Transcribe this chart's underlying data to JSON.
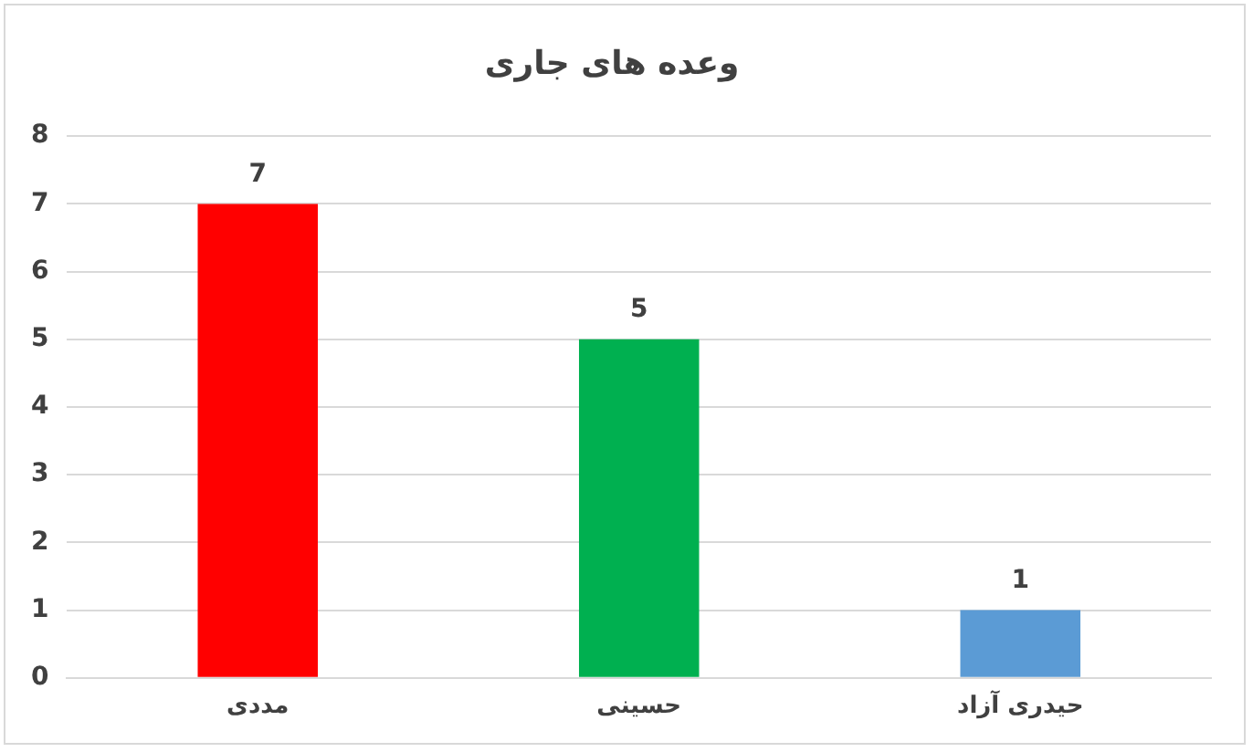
{
  "chart_data": {
    "type": "bar",
    "title": "وعده های جاری",
    "categories": [
      "مددی",
      "حسینی",
      "حیدری آزاد"
    ],
    "values": [
      7,
      5,
      1
    ],
    "colors": [
      "#ff0000",
      "#00b050",
      "#5b9bd5"
    ],
    "ylim": [
      0,
      8
    ],
    "yticks": [
      0,
      1,
      2,
      3,
      4,
      5,
      6,
      7,
      8
    ],
    "grid": "y",
    "legend": false,
    "data_labels": true
  }
}
